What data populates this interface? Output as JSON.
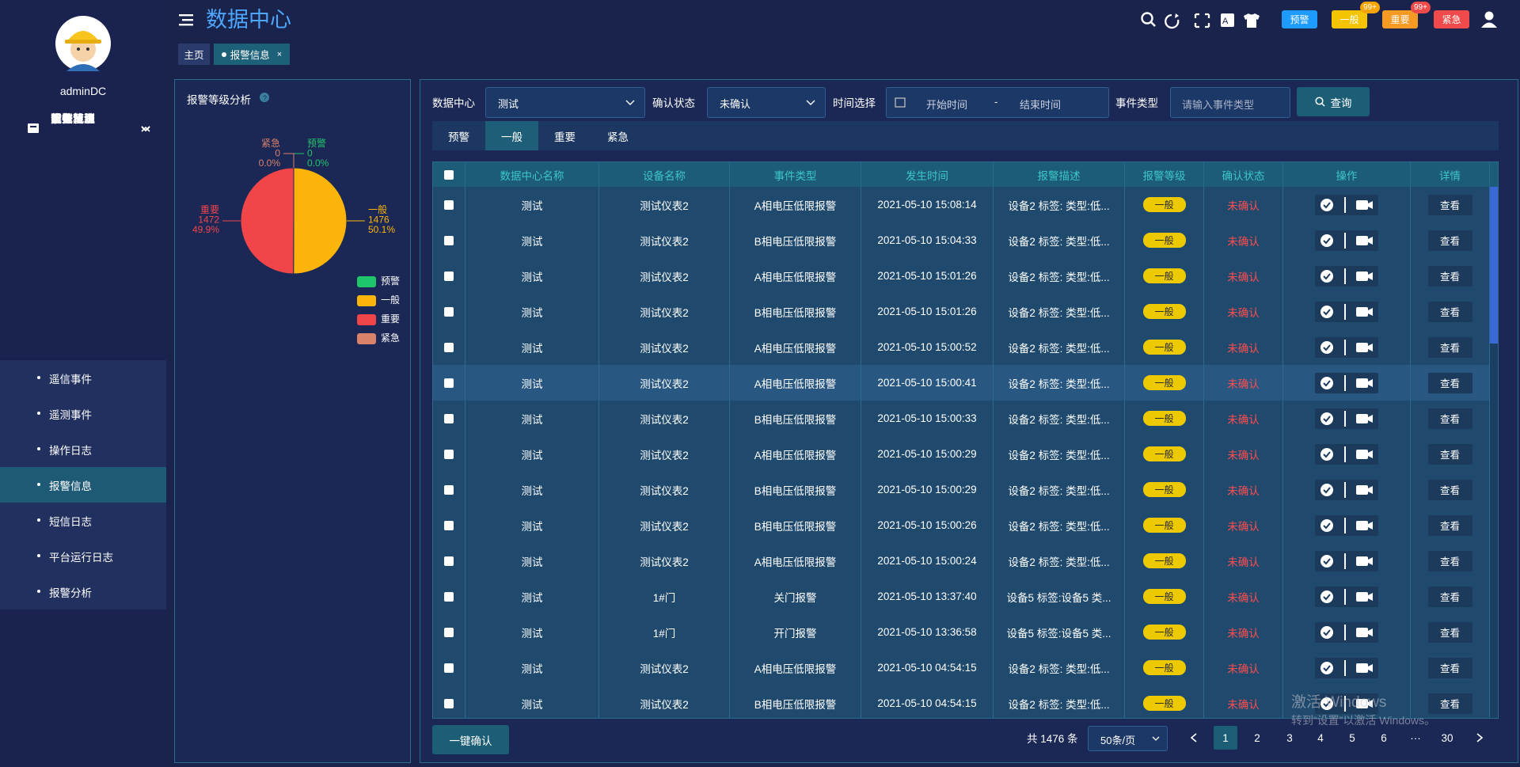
{
  "user": {
    "name": "adminDC"
  },
  "menu": [
    {
      "label": "首页"
    },
    {
      "label": "配电系统"
    },
    {
      "label": "数据机房"
    },
    {
      "label": "设备监测"
    },
    {
      "label": "运行环境"
    },
    {
      "label": "能效管理"
    },
    {
      "label": "事件记录",
      "children": [
        "遥信事件",
        "遥测事件",
        "操作日志",
        "报警信息",
        "短信日志",
        "平台运行日志",
        "报警分析"
      ]
    },
    {
      "label": "系统设置"
    }
  ],
  "header": {
    "title": "数据中心",
    "alerts": [
      {
        "label": "预警"
      },
      {
        "label": "一般",
        "count": "99+"
      },
      {
        "label": "重要",
        "count": "99+"
      },
      {
        "label": "紧急"
      }
    ]
  },
  "tabs": [
    "主页",
    "报警信息"
  ],
  "tab_close": "×",
  "filters": {
    "data_center": {
      "label": "数据中心",
      "value": "测试"
    },
    "confirm": {
      "label": "确认状态",
      "value": "未确认"
    },
    "time": {
      "label": "时间选择",
      "start": "开始时间",
      "separator": "-",
      "end": "结束时间"
    },
    "event_type": {
      "label": "事件类型",
      "placeholder": "请输入事件类型"
    },
    "query": "查询"
  },
  "level_tabs": [
    "预警",
    "一般",
    "重要",
    "紧急"
  ],
  "table": {
    "headers": [
      "数据中心名称",
      "设备名称",
      "事件类型",
      "发生时间",
      "报警描述",
      "报警等级",
      "确认状态",
      "操作",
      "详情"
    ],
    "rows": [
      [
        "测试",
        "测试仪表2",
        "A相电压低限报警",
        "2021-05-10 15:08:14",
        "设备2 标签: 类型:低...",
        "一般",
        "未确认",
        "查看"
      ],
      [
        "测试",
        "测试仪表2",
        "B相电压低限报警",
        "2021-05-10 15:04:33",
        "设备2 标签: 类型:低...",
        "一般",
        "未确认",
        "查看"
      ],
      [
        "测试",
        "测试仪表2",
        "A相电压低限报警",
        "2021-05-10 15:01:26",
        "设备2 标签: 类型:低...",
        "一般",
        "未确认",
        "查看"
      ],
      [
        "测试",
        "测试仪表2",
        "B相电压低限报警",
        "2021-05-10 15:01:26",
        "设备2 标签: 类型:低...",
        "一般",
        "未确认",
        "查看"
      ],
      [
        "测试",
        "测试仪表2",
        "A相电压低限报警",
        "2021-05-10 15:00:52",
        "设备2 标签: 类型:低...",
        "一般",
        "未确认",
        "查看"
      ],
      [
        "测试",
        "测试仪表2",
        "A相电压低限报警",
        "2021-05-10 15:00:41",
        "设备2 标签: 类型:低...",
        "一般",
        "未确认",
        "查看"
      ],
      [
        "测试",
        "测试仪表2",
        "B相电压低限报警",
        "2021-05-10 15:00:33",
        "设备2 标签: 类型:低...",
        "一般",
        "未确认",
        "查看"
      ],
      [
        "测试",
        "测试仪表2",
        "A相电压低限报警",
        "2021-05-10 15:00:29",
        "设备2 标签: 类型:低...",
        "一般",
        "未确认",
        "查看"
      ],
      [
        "测试",
        "测试仪表2",
        "B相电压低限报警",
        "2021-05-10 15:00:29",
        "设备2 标签: 类型:低...",
        "一般",
        "未确认",
        "查看"
      ],
      [
        "测试",
        "测试仪表2",
        "B相电压低限报警",
        "2021-05-10 15:00:26",
        "设备2 标签: 类型:低...",
        "一般",
        "未确认",
        "查看"
      ],
      [
        "测试",
        "测试仪表2",
        "A相电压低限报警",
        "2021-05-10 15:00:24",
        "设备2 标签: 类型:低...",
        "一般",
        "未确认",
        "查看"
      ],
      [
        "测试",
        "1#门",
        "关门报警",
        "2021-05-10 13:37:40",
        "设备5 标签:设备5 类...",
        "一般",
        "未确认",
        "查看"
      ],
      [
        "测试",
        "1#门",
        "开门报警",
        "2021-05-10 13:36:58",
        "设备5 标签:设备5 类...",
        "一般",
        "未确认",
        "查看"
      ],
      [
        "测试",
        "测试仪表2",
        "A相电压低限报警",
        "2021-05-10 04:54:15",
        "设备2 标签: 类型:低...",
        "一般",
        "未确认",
        "查看"
      ],
      [
        "测试",
        "测试仪表2",
        "B相电压低限报警",
        "2021-05-10 04:54:15",
        "设备2 标签: 类型:低...",
        "一般",
        "未确认",
        "查看"
      ]
    ]
  },
  "confirm_all": "一键确认",
  "pagination": {
    "total": "共 1476 条",
    "page_size": "50条/页",
    "pages": [
      "1",
      "2",
      "3",
      "4",
      "5",
      "6",
      "···",
      "30"
    ]
  },
  "watermark": [
    "激活 Windows",
    "转到“设置”以激活 Windows。"
  ],
  "chart_data": {
    "type": "pie",
    "title": "报警等级分析",
    "categories": [
      "预警",
      "一般",
      "重要",
      "紧急"
    ],
    "values": [
      0,
      1476,
      1472,
      0
    ],
    "percent_labels": [
      "0.0%",
      "50.1%",
      "49.9%",
      "0.0%"
    ],
    "colors": [
      "#1fc46b",
      "#fbb40a",
      "#f2454a",
      "#d9826a"
    ]
  }
}
